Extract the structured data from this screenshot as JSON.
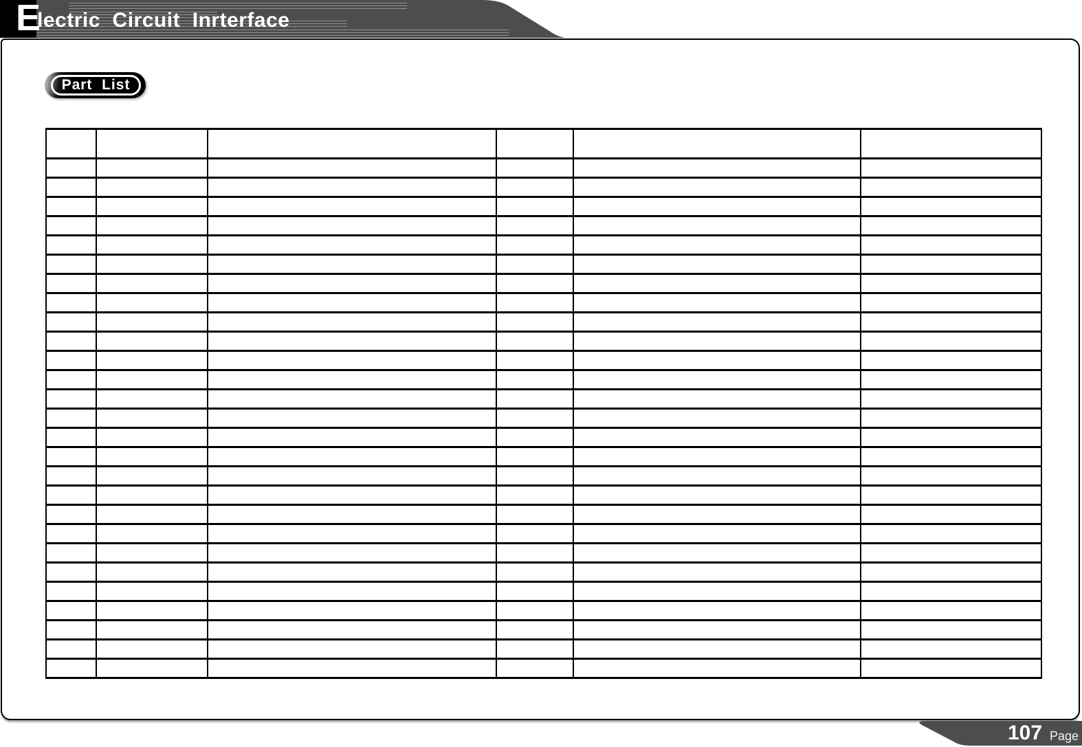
{
  "header": {
    "title_initial": "E",
    "title_rest": "lectric  Circuit  Inrterface"
  },
  "badge": {
    "label": "Part  List"
  },
  "table": {
    "columns": 6,
    "rows": 27,
    "header_labels": [
      "",
      "",
      "",
      "",
      "",
      ""
    ]
  },
  "footer": {
    "page_number": "107",
    "page_word": "Page"
  },
  "colors": {
    "banner_gray": "#4d4d4d",
    "border_black": "#000000",
    "text_white": "#ffffff"
  }
}
